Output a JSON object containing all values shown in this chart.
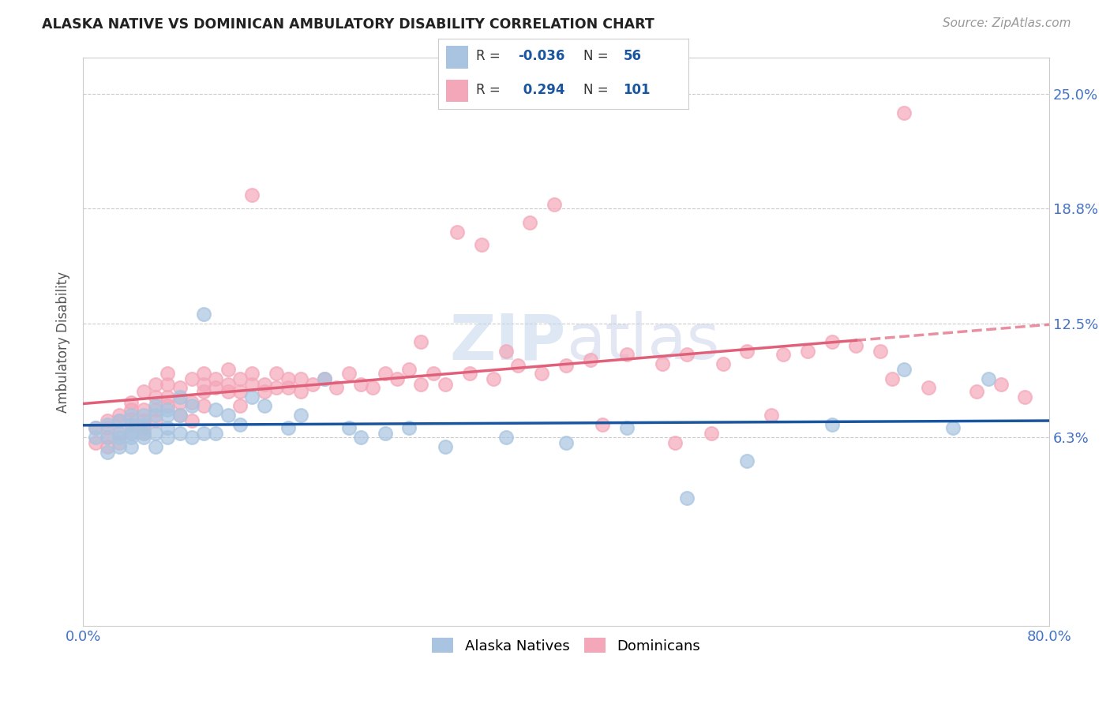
{
  "title": "ALASKA NATIVE VS DOMINICAN AMBULATORY DISABILITY CORRELATION CHART",
  "source": "Source: ZipAtlas.com",
  "ylabel": "Ambulatory Disability",
  "ytick_labels": [
    "6.3%",
    "12.5%",
    "18.8%",
    "25.0%"
  ],
  "ytick_values": [
    0.063,
    0.125,
    0.188,
    0.25
  ],
  "xlim": [
    0.0,
    0.8
  ],
  "ylim": [
    -0.04,
    0.27
  ],
  "legend_R_alaska": "-0.036",
  "legend_N_alaska": "56",
  "legend_R_dominican": "0.294",
  "legend_N_dominican": "101",
  "color_alaska": "#a8c4e0",
  "color_dominican": "#f4a7b9",
  "line_color_alaska": "#1a56a0",
  "line_color_dominican": "#e0607a",
  "background_color": "#ffffff",
  "alaska_x": [
    0.01,
    0.01,
    0.02,
    0.02,
    0.02,
    0.03,
    0.03,
    0.03,
    0.03,
    0.04,
    0.04,
    0.04,
    0.04,
    0.04,
    0.05,
    0.05,
    0.05,
    0.05,
    0.06,
    0.06,
    0.06,
    0.06,
    0.07,
    0.07,
    0.07,
    0.07,
    0.08,
    0.08,
    0.08,
    0.09,
    0.09,
    0.1,
    0.1,
    0.11,
    0.11,
    0.12,
    0.13,
    0.14,
    0.15,
    0.17,
    0.18,
    0.2,
    0.22,
    0.23,
    0.25,
    0.27,
    0.3,
    0.35,
    0.4,
    0.45,
    0.5,
    0.55,
    0.62,
    0.68,
    0.72,
    0.75
  ],
  "alaska_y": [
    0.068,
    0.063,
    0.07,
    0.063,
    0.055,
    0.072,
    0.065,
    0.063,
    0.058,
    0.075,
    0.07,
    0.065,
    0.063,
    0.058,
    0.075,
    0.07,
    0.065,
    0.063,
    0.08,
    0.075,
    0.065,
    0.058,
    0.078,
    0.075,
    0.068,
    0.063,
    0.085,
    0.075,
    0.065,
    0.08,
    0.063,
    0.13,
    0.065,
    0.078,
    0.065,
    0.075,
    0.07,
    0.085,
    0.08,
    0.068,
    0.075,
    0.095,
    0.068,
    0.063,
    0.065,
    0.068,
    0.058,
    0.063,
    0.06,
    0.068,
    0.03,
    0.05,
    0.07,
    0.1,
    0.068,
    0.095
  ],
  "dominican_x": [
    0.01,
    0.01,
    0.02,
    0.02,
    0.02,
    0.02,
    0.03,
    0.03,
    0.03,
    0.03,
    0.04,
    0.04,
    0.04,
    0.04,
    0.04,
    0.05,
    0.05,
    0.05,
    0.05,
    0.05,
    0.06,
    0.06,
    0.06,
    0.06,
    0.07,
    0.07,
    0.07,
    0.07,
    0.08,
    0.08,
    0.08,
    0.09,
    0.09,
    0.09,
    0.1,
    0.1,
    0.1,
    0.1,
    0.11,
    0.11,
    0.12,
    0.12,
    0.12,
    0.13,
    0.13,
    0.13,
    0.14,
    0.14,
    0.15,
    0.15,
    0.16,
    0.16,
    0.17,
    0.17,
    0.18,
    0.18,
    0.19,
    0.2,
    0.21,
    0.22,
    0.23,
    0.24,
    0.25,
    0.26,
    0.27,
    0.28,
    0.29,
    0.3,
    0.32,
    0.34,
    0.36,
    0.38,
    0.4,
    0.42,
    0.45,
    0.48,
    0.5,
    0.53,
    0.55,
    0.58,
    0.6,
    0.62,
    0.64,
    0.66,
    0.35,
    0.37,
    0.39,
    0.28,
    0.31,
    0.33,
    0.14,
    0.43,
    0.49,
    0.52,
    0.57,
    0.67,
    0.7,
    0.74,
    0.76,
    0.78,
    0.68
  ],
  "dominican_y": [
    0.068,
    0.06,
    0.072,
    0.063,
    0.058,
    0.068,
    0.072,
    0.065,
    0.075,
    0.06,
    0.078,
    0.065,
    0.07,
    0.082,
    0.073,
    0.078,
    0.065,
    0.088,
    0.072,
    0.068,
    0.092,
    0.085,
    0.072,
    0.078,
    0.092,
    0.085,
    0.098,
    0.08,
    0.09,
    0.082,
    0.075,
    0.095,
    0.082,
    0.072,
    0.098,
    0.092,
    0.088,
    0.08,
    0.095,
    0.09,
    0.1,
    0.092,
    0.088,
    0.095,
    0.088,
    0.08,
    0.098,
    0.092,
    0.092,
    0.088,
    0.098,
    0.09,
    0.095,
    0.09,
    0.095,
    0.088,
    0.092,
    0.095,
    0.09,
    0.098,
    0.092,
    0.09,
    0.098,
    0.095,
    0.1,
    0.092,
    0.098,
    0.092,
    0.098,
    0.095,
    0.102,
    0.098,
    0.102,
    0.105,
    0.108,
    0.103,
    0.108,
    0.103,
    0.11,
    0.108,
    0.11,
    0.115,
    0.113,
    0.11,
    0.11,
    0.18,
    0.19,
    0.115,
    0.175,
    0.168,
    0.195,
    0.07,
    0.06,
    0.065,
    0.075,
    0.095,
    0.09,
    0.088,
    0.092,
    0.085,
    0.24
  ]
}
